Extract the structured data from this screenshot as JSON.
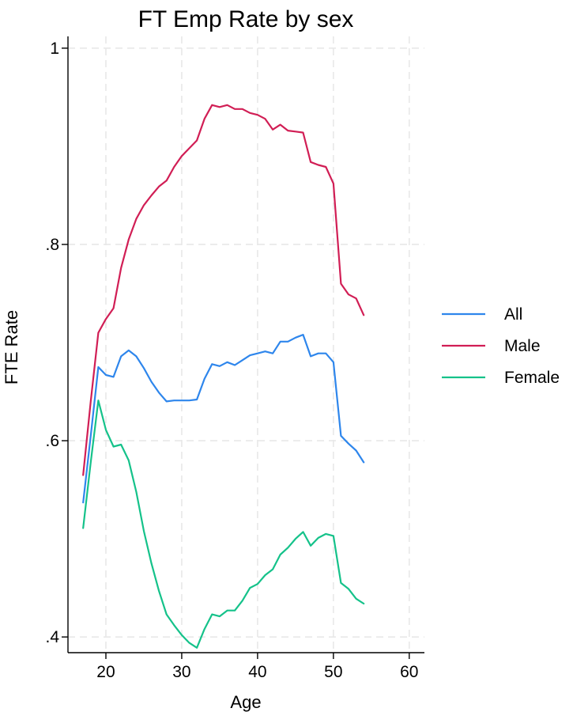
{
  "chart_data": {
    "type": "line",
    "title": "FT Emp Rate by sex",
    "xlabel": "Age",
    "ylabel": "FTE Rate",
    "xlim": [
      15,
      62
    ],
    "ylim": [
      0.384,
      1.012
    ],
    "xticks": [
      20,
      30,
      40,
      50,
      60
    ],
    "xtick_labels": [
      "20",
      "30",
      "40",
      "50",
      "60"
    ],
    "yticks": [
      0.4,
      0.6,
      0.8,
      1.0
    ],
    "ytick_labels": [
      ".4",
      ".6",
      ".8",
      "1"
    ],
    "grid": true,
    "legend_position": "right",
    "series": [
      {
        "name": "All",
        "color": "#2e86ec",
        "x": [
          17,
          18,
          19,
          20,
          21,
          22,
          23,
          24,
          25,
          26,
          27,
          28,
          29,
          30,
          31,
          32,
          33,
          34,
          35,
          36,
          37,
          38,
          39,
          40,
          41,
          42,
          43,
          44,
          45,
          46,
          47,
          48,
          49,
          50,
          51,
          52,
          53,
          54
        ],
        "values": [
          0.537,
          0.605,
          0.675,
          0.667,
          0.665,
          0.686,
          0.692,
          0.686,
          0.674,
          0.66,
          0.649,
          0.64,
          0.641,
          0.641,
          0.641,
          0.642,
          0.663,
          0.678,
          0.676,
          0.68,
          0.677,
          0.682,
          0.687,
          0.689,
          0.691,
          0.689,
          0.701,
          0.701,
          0.705,
          0.708,
          0.686,
          0.689,
          0.689,
          0.68,
          0.605,
          0.597,
          0.59,
          0.578
        ]
      },
      {
        "name": "Male",
        "color": "#d11e55",
        "x": [
          17,
          18,
          19,
          20,
          21,
          22,
          23,
          24,
          25,
          26,
          27,
          28,
          29,
          30,
          31,
          32,
          33,
          34,
          35,
          36,
          37,
          38,
          39,
          40,
          41,
          42,
          43,
          44,
          45,
          46,
          47,
          48,
          49,
          50,
          51,
          52,
          53,
          54
        ],
        "values": [
          0.565,
          0.64,
          0.71,
          0.724,
          0.735,
          0.776,
          0.805,
          0.826,
          0.84,
          0.85,
          0.859,
          0.865,
          0.879,
          0.89,
          0.898,
          0.906,
          0.928,
          0.942,
          0.94,
          0.942,
          0.938,
          0.938,
          0.934,
          0.932,
          0.928,
          0.917,
          0.922,
          0.916,
          0.915,
          0.914,
          0.884,
          0.881,
          0.879,
          0.862,
          0.76,
          0.749,
          0.745,
          0.728
        ]
      },
      {
        "name": "Female",
        "color": "#15c28a",
        "x": [
          17,
          18,
          19,
          20,
          21,
          22,
          23,
          24,
          25,
          26,
          27,
          28,
          29,
          30,
          31,
          32,
          33,
          34,
          35,
          36,
          37,
          38,
          39,
          40,
          41,
          42,
          43,
          44,
          45,
          46,
          47,
          48,
          49,
          50,
          51,
          52,
          53,
          54
        ],
        "values": [
          0.511,
          0.578,
          0.641,
          0.611,
          0.594,
          0.596,
          0.58,
          0.548,
          0.508,
          0.475,
          0.447,
          0.423,
          0.412,
          0.402,
          0.394,
          0.389,
          0.408,
          0.423,
          0.421,
          0.427,
          0.427,
          0.437,
          0.45,
          0.454,
          0.463,
          0.469,
          0.484,
          0.491,
          0.5,
          0.507,
          0.493,
          0.501,
          0.505,
          0.503,
          0.455,
          0.449,
          0.439,
          0.434
        ]
      }
    ]
  }
}
